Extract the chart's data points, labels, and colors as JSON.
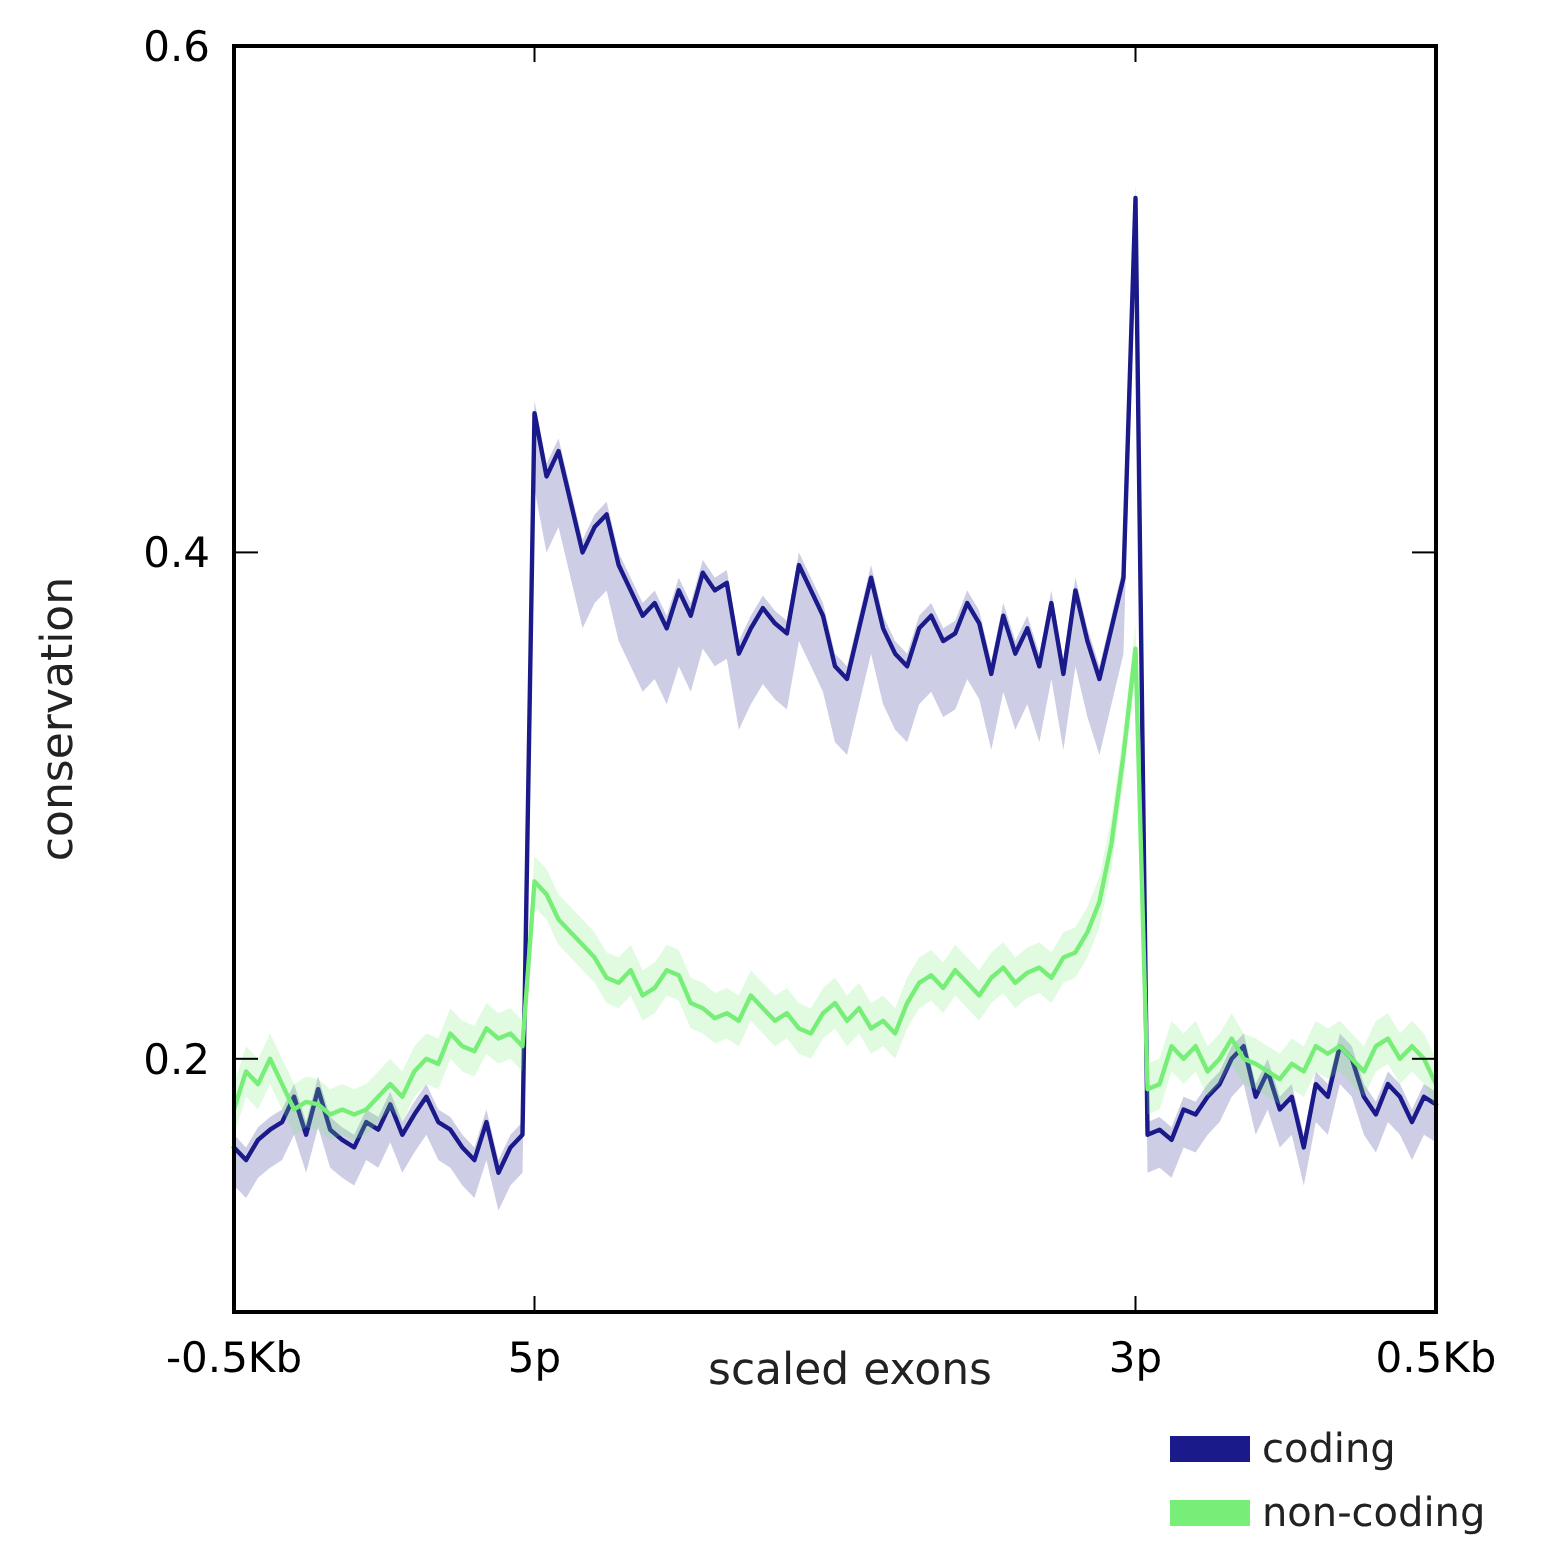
{
  "chart_data": {
    "type": "line",
    "xlabel": "scaled exons",
    "ylabel": "conservation",
    "ylim": [
      0.1,
      0.6
    ],
    "yticks": [
      0.2,
      0.4,
      0.6
    ],
    "grid": false,
    "legend": "bottom right",
    "marker": "none",
    "line_style": "solid",
    "categories": [
      "-0.5Kb",
      null,
      null,
      null,
      null,
      null,
      null,
      null,
      null,
      null,
      null,
      null,
      null,
      null,
      null,
      null,
      null,
      null,
      null,
      null,
      null,
      null,
      null,
      null,
      null,
      "5p",
      null,
      null,
      null,
      null,
      null,
      null,
      null,
      null,
      null,
      null,
      null,
      null,
      null,
      null,
      null,
      null,
      null,
      null,
      null,
      null,
      null,
      null,
      null,
      null,
      null,
      null,
      null,
      null,
      null,
      null,
      null,
      null,
      null,
      null,
      null,
      null,
      null,
      null,
      null,
      null,
      null,
      null,
      null,
      null,
      null,
      null,
      null,
      null,
      null,
      "3p",
      null,
      null,
      null,
      null,
      null,
      null,
      null,
      null,
      null,
      null,
      null,
      null,
      null,
      null,
      null,
      null,
      null,
      null,
      null,
      null,
      null,
      null,
      null,
      null,
      "0.5Kb"
    ],
    "series": [
      {
        "name": "coding",
        "color": "#1a1a8a",
        "values": [
          0.165,
          0.16,
          0.168,
          0.172,
          0.175,
          0.185,
          0.17,
          0.188,
          0.172,
          0.168,
          0.165,
          0.175,
          0.172,
          0.182,
          0.17,
          0.178,
          0.185,
          0.175,
          0.172,
          0.165,
          0.16,
          0.175,
          0.155,
          0.165,
          0.17,
          0.455,
          0.43,
          0.44,
          0.42,
          0.4,
          0.41,
          0.415,
          0.395,
          0.385,
          0.375,
          0.38,
          0.37,
          0.385,
          0.375,
          0.392,
          0.385,
          0.388,
          0.36,
          0.37,
          0.378,
          0.372,
          0.368,
          0.395,
          0.385,
          0.375,
          0.355,
          0.35,
          0.37,
          0.39,
          0.37,
          0.36,
          0.355,
          0.37,
          0.375,
          0.365,
          0.368,
          0.38,
          0.372,
          0.352,
          0.375,
          0.36,
          0.37,
          0.355,
          0.38,
          0.352,
          0.385,
          0.365,
          0.35,
          0.37,
          0.39,
          0.54,
          0.17,
          0.172,
          0.168,
          0.18,
          0.178,
          0.185,
          0.19,
          0.2,
          0.205,
          0.185,
          0.195,
          0.18,
          0.185,
          0.165,
          0.19,
          0.185,
          0.205,
          0.2,
          0.185,
          0.178,
          0.19,
          0.185,
          0.175,
          0.185,
          0.182
        ],
        "lower": [
          0.15,
          0.145,
          0.153,
          0.157,
          0.16,
          0.17,
          0.155,
          0.173,
          0.157,
          0.153,
          0.15,
          0.16,
          0.157,
          0.167,
          0.155,
          0.163,
          0.17,
          0.16,
          0.157,
          0.15,
          0.145,
          0.16,
          0.14,
          0.15,
          0.155,
          0.425,
          0.4,
          0.41,
          0.39,
          0.37,
          0.38,
          0.385,
          0.365,
          0.355,
          0.345,
          0.35,
          0.34,
          0.355,
          0.345,
          0.362,
          0.355,
          0.358,
          0.33,
          0.34,
          0.348,
          0.342,
          0.338,
          0.365,
          0.355,
          0.345,
          0.325,
          0.32,
          0.34,
          0.36,
          0.34,
          0.33,
          0.325,
          0.34,
          0.345,
          0.335,
          0.338,
          0.35,
          0.342,
          0.322,
          0.345,
          0.33,
          0.34,
          0.325,
          0.35,
          0.322,
          0.355,
          0.335,
          0.32,
          0.34,
          0.36,
          0.53,
          0.155,
          0.157,
          0.153,
          0.165,
          0.163,
          0.17,
          0.175,
          0.185,
          0.19,
          0.17,
          0.18,
          0.165,
          0.17,
          0.15,
          0.175,
          0.17,
          0.19,
          0.185,
          0.17,
          0.163,
          0.175,
          0.17,
          0.16,
          0.17,
          0.167
        ],
        "upper": [
          0.17,
          0.165,
          0.173,
          0.177,
          0.18,
          0.19,
          0.175,
          0.193,
          0.177,
          0.173,
          0.17,
          0.18,
          0.177,
          0.187,
          0.175,
          0.183,
          0.19,
          0.18,
          0.177,
          0.17,
          0.165,
          0.18,
          0.16,
          0.17,
          0.175,
          0.46,
          0.435,
          0.445,
          0.425,
          0.405,
          0.415,
          0.42,
          0.4,
          0.39,
          0.38,
          0.385,
          0.375,
          0.39,
          0.38,
          0.397,
          0.39,
          0.393,
          0.365,
          0.375,
          0.383,
          0.377,
          0.373,
          0.4,
          0.39,
          0.38,
          0.36,
          0.355,
          0.375,
          0.395,
          0.375,
          0.365,
          0.36,
          0.375,
          0.38,
          0.37,
          0.373,
          0.385,
          0.377,
          0.357,
          0.38,
          0.365,
          0.375,
          0.36,
          0.385,
          0.357,
          0.39,
          0.37,
          0.355,
          0.375,
          0.395,
          0.545,
          0.175,
          0.177,
          0.173,
          0.185,
          0.183,
          0.19,
          0.195,
          0.205,
          0.21,
          0.19,
          0.2,
          0.185,
          0.19,
          0.17,
          0.195,
          0.19,
          0.21,
          0.205,
          0.19,
          0.183,
          0.195,
          0.19,
          0.18,
          0.19,
          0.187
        ]
      },
      {
        "name": "non-coding",
        "color": "#77ee77",
        "values": [
          0.18,
          0.195,
          0.19,
          0.2,
          0.19,
          0.18,
          0.183,
          0.182,
          0.178,
          0.18,
          0.178,
          0.18,
          0.185,
          0.19,
          0.185,
          0.195,
          0.2,
          0.198,
          0.21,
          0.205,
          0.203,
          0.212,
          0.208,
          0.21,
          0.205,
          0.27,
          0.265,
          0.255,
          0.25,
          0.245,
          0.24,
          0.232,
          0.23,
          0.235,
          0.225,
          0.228,
          0.235,
          0.233,
          0.222,
          0.22,
          0.216,
          0.218,
          0.215,
          0.225,
          0.22,
          0.215,
          0.218,
          0.212,
          0.21,
          0.218,
          0.222,
          0.215,
          0.22,
          0.212,
          0.215,
          0.21,
          0.222,
          0.23,
          0.233,
          0.228,
          0.235,
          0.23,
          0.225,
          0.232,
          0.236,
          0.23,
          0.234,
          0.236,
          0.232,
          0.24,
          0.242,
          0.25,
          0.262,
          0.285,
          0.32,
          0.362,
          0.188,
          0.19,
          0.205,
          0.2,
          0.205,
          0.195,
          0.2,
          0.208,
          0.2,
          0.198,
          0.195,
          0.192,
          0.198,
          0.195,
          0.205,
          0.202,
          0.205,
          0.2,
          0.195,
          0.205,
          0.208,
          0.2,
          0.205,
          0.2,
          0.19
        ],
        "lower": [
          0.17,
          0.185,
          0.18,
          0.19,
          0.18,
          0.17,
          0.173,
          0.172,
          0.168,
          0.17,
          0.168,
          0.17,
          0.175,
          0.18,
          0.175,
          0.185,
          0.19,
          0.188,
          0.2,
          0.195,
          0.193,
          0.202,
          0.198,
          0.2,
          0.195,
          0.26,
          0.255,
          0.245,
          0.24,
          0.235,
          0.23,
          0.222,
          0.22,
          0.225,
          0.215,
          0.218,
          0.225,
          0.223,
          0.212,
          0.21,
          0.206,
          0.208,
          0.205,
          0.215,
          0.21,
          0.205,
          0.208,
          0.202,
          0.2,
          0.208,
          0.212,
          0.205,
          0.21,
          0.202,
          0.205,
          0.2,
          0.212,
          0.22,
          0.223,
          0.218,
          0.225,
          0.22,
          0.215,
          0.222,
          0.226,
          0.22,
          0.224,
          0.226,
          0.222,
          0.23,
          0.232,
          0.24,
          0.252,
          0.275,
          0.31,
          0.352,
          0.178,
          0.18,
          0.195,
          0.19,
          0.195,
          0.185,
          0.19,
          0.198,
          0.19,
          0.188,
          0.185,
          0.182,
          0.188,
          0.185,
          0.195,
          0.192,
          0.195,
          0.19,
          0.185,
          0.195,
          0.198,
          0.19,
          0.195,
          0.19,
          0.18
        ],
        "upper": [
          0.19,
          0.205,
          0.2,
          0.21,
          0.2,
          0.19,
          0.193,
          0.192,
          0.188,
          0.19,
          0.188,
          0.19,
          0.195,
          0.2,
          0.195,
          0.205,
          0.21,
          0.208,
          0.22,
          0.215,
          0.213,
          0.222,
          0.218,
          0.22,
          0.215,
          0.28,
          0.275,
          0.265,
          0.26,
          0.255,
          0.25,
          0.242,
          0.24,
          0.245,
          0.235,
          0.238,
          0.245,
          0.243,
          0.232,
          0.23,
          0.226,
          0.228,
          0.225,
          0.235,
          0.23,
          0.225,
          0.228,
          0.222,
          0.22,
          0.228,
          0.232,
          0.225,
          0.23,
          0.222,
          0.225,
          0.22,
          0.232,
          0.24,
          0.243,
          0.238,
          0.245,
          0.24,
          0.235,
          0.242,
          0.246,
          0.24,
          0.244,
          0.246,
          0.242,
          0.25,
          0.252,
          0.26,
          0.272,
          0.295,
          0.33,
          0.372,
          0.198,
          0.2,
          0.215,
          0.21,
          0.215,
          0.205,
          0.21,
          0.218,
          0.21,
          0.208,
          0.205,
          0.202,
          0.208,
          0.205,
          0.215,
          0.212,
          0.215,
          0.21,
          0.205,
          0.215,
          0.218,
          0.21,
          0.215,
          0.21,
          0.2
        ]
      }
    ]
  }
}
